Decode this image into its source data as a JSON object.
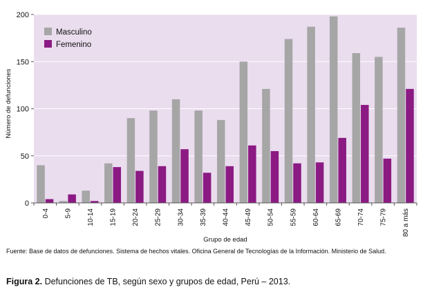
{
  "chart_data": {
    "type": "bar",
    "xlabel": "Grupo de edad",
    "ylabel": "Número de defunciones",
    "ylim": [
      0,
      200
    ],
    "yticks": [
      0,
      50,
      100,
      150,
      200
    ],
    "grid": true,
    "legend_position": "top-left",
    "categories": [
      "0-4",
      "5-9",
      "10-14",
      "15-19",
      "20-24",
      "25-29",
      "30-34",
      "35-39",
      "40-44",
      "45-49",
      "50-54",
      "55-59",
      "60-64",
      "65-69",
      "70-74",
      "75-79",
      "80 a más"
    ],
    "series": [
      {
        "name": "Masculino",
        "color": "#a6a6a6",
        "values": [
          40,
          2,
          13,
          42,
          90,
          98,
          110,
          98,
          88,
          150,
          121,
          174,
          187,
          198,
          159,
          155,
          186
        ]
      },
      {
        "name": "Femenino",
        "color": "#8b1a83",
        "values": [
          4,
          9,
          2,
          38,
          34,
          39,
          57,
          32,
          39,
          61,
          55,
          42,
          43,
          69,
          104,
          47,
          121
        ]
      }
    ]
  },
  "colors": {
    "plot_background": "#eaddee",
    "gridline": "#ffffff"
  },
  "source_text": "Fuente: Base de datos de defunciones. Sistema de hechos vitales. Oficina General de Tecnologías de la Información. Ministerio de Salud.",
  "caption": {
    "label": "Figura 2.",
    "text": " Defunciones de TB, según sexo y grupos de edad, Perú – 2013."
  }
}
